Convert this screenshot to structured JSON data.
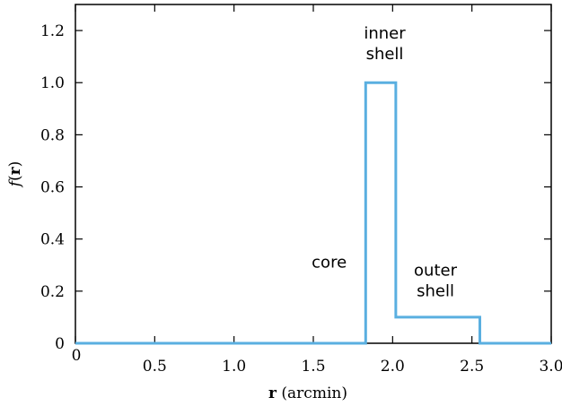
{
  "chart_data": {
    "type": "line",
    "series": [
      {
        "color": "#5aafe0",
        "x": [
          0,
          1.83,
          1.83,
          2.02,
          2.02,
          2.55,
          2.55,
          3.0
        ],
        "y": [
          0,
          0,
          1.0,
          1.0,
          0.1,
          0.1,
          0,
          0
        ]
      }
    ],
    "xlim": [
      0,
      3.0
    ],
    "ylim": [
      0,
      1.3
    ],
    "xticks": [
      0,
      0.5,
      1.0,
      1.5,
      2.0,
      2.5,
      3.0
    ],
    "xtick_labels": [
      "0",
      "0.5",
      "1.0",
      "1.5",
      "2.0",
      "2.5",
      "3.0"
    ],
    "yticks": [
      0,
      0.2,
      0.4,
      0.6,
      0.8,
      1.0,
      1.2
    ],
    "ytick_labels": [
      "0",
      "0.2",
      "0.4",
      "0.6",
      "0.8",
      "1.0",
      "1.2"
    ],
    "xlabel_bold": "r",
    "xlabel_rest": " (arcmin)",
    "ylabel_func": "f",
    "ylabel_open": "(",
    "ylabel_bold": "r",
    "ylabel_close": ")",
    "grid": false,
    "annotations": [
      {
        "lines": [
          "core"
        ],
        "x": 1.6,
        "y": 0.29
      },
      {
        "lines": [
          "inner",
          "shell"
        ],
        "x": 1.95,
        "y": 1.17
      },
      {
        "lines": [
          "outer",
          "shell"
        ],
        "x": 2.27,
        "y": 0.26
      }
    ]
  }
}
